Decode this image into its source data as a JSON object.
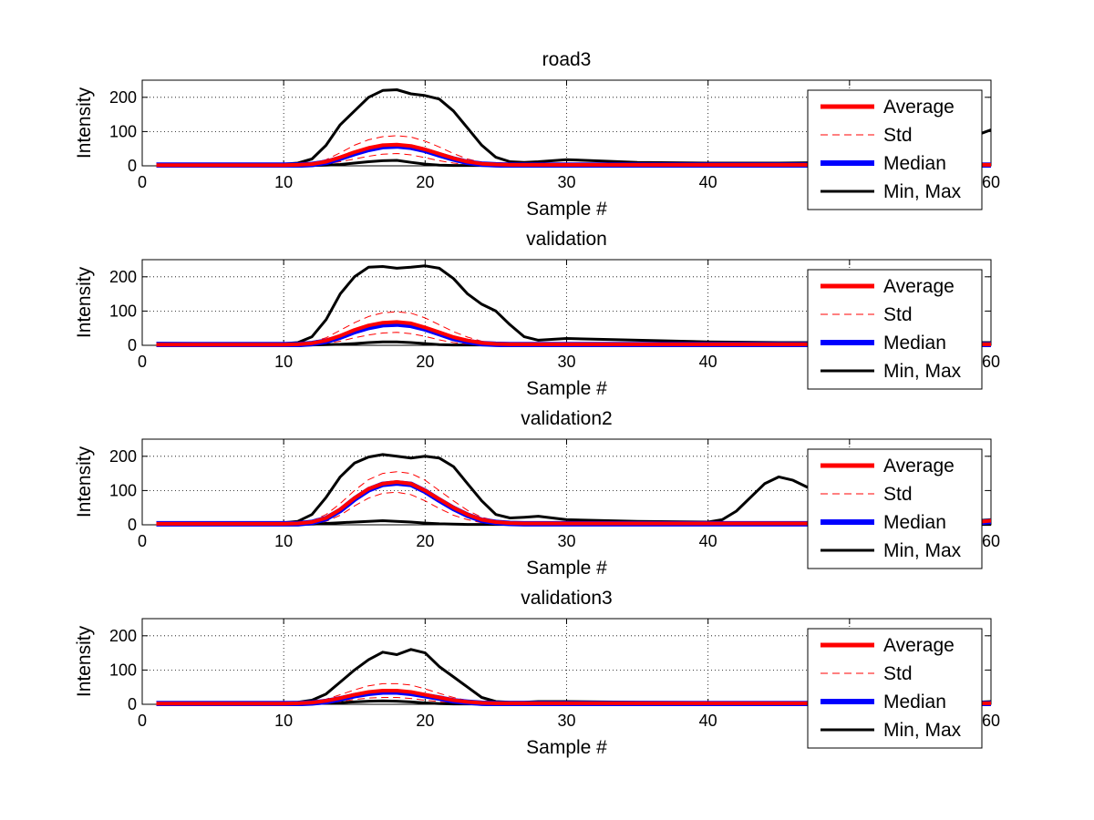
{
  "figure": {
    "x_ticks": [
      0,
      10,
      20,
      30,
      40,
      50,
      60
    ],
    "x_tick_labels": [
      "0",
      "10",
      "20",
      "30",
      "40",
      "",
      "60"
    ],
    "y_ticks": [
      0,
      100,
      200
    ],
    "xlim": [
      0,
      60
    ],
    "ylim": [
      0,
      250
    ],
    "grid": "dotted",
    "legend": {
      "placement": "right-overlapping-axes",
      "entries": [
        "Average",
        "Std",
        "Median",
        "Min, Max"
      ]
    },
    "colors": {
      "average": "#ff0000",
      "std": "#ff0000",
      "median": "#0000ff",
      "minmax": "#000000"
    }
  },
  "chart_data": [
    {
      "type": "line",
      "title": "road3",
      "xlabel": "Sample #",
      "ylabel": "Intensity",
      "xlim": [
        0,
        60
      ],
      "ylim": [
        0,
        250
      ],
      "x": [
        1,
        5,
        10,
        11,
        12,
        13,
        14,
        15,
        16,
        17,
        18,
        19,
        20,
        21,
        22,
        23,
        24,
        25,
        26,
        27,
        28,
        30,
        35,
        40,
        45,
        50,
        55,
        59,
        60
      ],
      "series": [
        {
          "name": "Average",
          "values": [
            2,
            2,
            2,
            3,
            5,
            12,
            25,
            40,
            52,
            60,
            62,
            58,
            48,
            35,
            22,
            12,
            6,
            4,
            3,
            3,
            3,
            3,
            3,
            3,
            3,
            3,
            3,
            3,
            3
          ]
        },
        {
          "name": "Std",
          "role": "upper",
          "values": [
            3,
            3,
            4,
            5,
            8,
            18,
            38,
            60,
            76,
            85,
            88,
            84,
            72,
            55,
            36,
            20,
            10,
            6,
            5,
            5,
            5,
            5,
            5,
            5,
            5,
            5,
            5,
            5,
            5
          ]
        },
        {
          "name": "Std",
          "role": "lower",
          "values": [
            1,
            1,
            1,
            1,
            2,
            6,
            12,
            20,
            28,
            34,
            36,
            32,
            24,
            15,
            8,
            4,
            2,
            2,
            1,
            1,
            1,
            1,
            1,
            1,
            1,
            1,
            1,
            1,
            1
          ]
        },
        {
          "name": "Median",
          "values": [
            2,
            2,
            2,
            2,
            4,
            10,
            22,
            36,
            48,
            56,
            58,
            54,
            45,
            32,
            20,
            10,
            5,
            3,
            2,
            2,
            2,
            2,
            2,
            2,
            2,
            2,
            2,
            2,
            2
          ]
        },
        {
          "name": "Min, Max",
          "role": "max",
          "values": [
            5,
            5,
            5,
            8,
            20,
            60,
            120,
            160,
            200,
            220,
            222,
            210,
            205,
            195,
            160,
            110,
            60,
            25,
            12,
            10,
            12,
            18,
            10,
            8,
            8,
            10,
            12,
            90,
            105
          ]
        },
        {
          "name": "Min, Max",
          "role": "min",
          "values": [
            1,
            1,
            1,
            1,
            1,
            2,
            4,
            8,
            12,
            15,
            16,
            10,
            5,
            2,
            1,
            1,
            1,
            1,
            1,
            1,
            1,
            1,
            1,
            1,
            1,
            1,
            1,
            1,
            1
          ]
        }
      ]
    },
    {
      "type": "line",
      "title": "validation",
      "xlabel": "Sample #",
      "ylabel": "Intensity",
      "xlim": [
        0,
        60
      ],
      "ylim": [
        0,
        250
      ],
      "x": [
        1,
        5,
        10,
        11,
        12,
        13,
        14,
        15,
        16,
        17,
        18,
        19,
        20,
        21,
        22,
        23,
        24,
        25,
        26,
        27,
        28,
        30,
        35,
        40,
        45,
        50,
        55,
        59,
        60
      ],
      "series": [
        {
          "name": "Average",
          "values": [
            2,
            2,
            2,
            3,
            6,
            14,
            28,
            45,
            58,
            66,
            68,
            64,
            52,
            38,
            24,
            14,
            7,
            4,
            3,
            3,
            3,
            3,
            3,
            3,
            3,
            3,
            3,
            3,
            3
          ]
        },
        {
          "name": "Std",
          "role": "upper",
          "values": [
            3,
            3,
            4,
            5,
            10,
            22,
            44,
            66,
            84,
            95,
            98,
            94,
            80,
            60,
            40,
            24,
            12,
            7,
            5,
            5,
            5,
            5,
            5,
            5,
            5,
            5,
            5,
            5,
            5
          ]
        },
        {
          "name": "Std",
          "role": "lower",
          "values": [
            1,
            1,
            1,
            1,
            2,
            6,
            12,
            22,
            30,
            36,
            38,
            34,
            26,
            16,
            8,
            4,
            2,
            1,
            1,
            1,
            1,
            1,
            1,
            1,
            1,
            1,
            1,
            1,
            1
          ]
        },
        {
          "name": "Median",
          "values": [
            2,
            2,
            2,
            2,
            5,
            12,
            24,
            40,
            52,
            60,
            62,
            58,
            48,
            34,
            20,
            11,
            5,
            3,
            2,
            2,
            2,
            2,
            2,
            2,
            2,
            2,
            2,
            2,
            2
          ]
        },
        {
          "name": "Min, Max",
          "role": "max",
          "values": [
            6,
            5,
            5,
            8,
            25,
            75,
            150,
            200,
            228,
            230,
            225,
            228,
            232,
            225,
            195,
            150,
            120,
            100,
            60,
            25,
            15,
            20,
            15,
            10,
            8,
            8,
            8,
            8,
            8
          ]
        },
        {
          "name": "Min, Max",
          "role": "min",
          "values": [
            1,
            1,
            1,
            1,
            1,
            2,
            3,
            5,
            8,
            10,
            10,
            8,
            5,
            2,
            1,
            1,
            1,
            1,
            1,
            1,
            1,
            1,
            1,
            1,
            1,
            1,
            1,
            1,
            1
          ]
        }
      ]
    },
    {
      "type": "line",
      "title": "validation2",
      "xlabel": "Sample #",
      "ylabel": "Intensity",
      "xlim": [
        0,
        60
      ],
      "ylim": [
        0,
        250
      ],
      "x": [
        1,
        5,
        10,
        11,
        12,
        13,
        14,
        15,
        16,
        17,
        18,
        19,
        20,
        21,
        22,
        23,
        24,
        25,
        26,
        27,
        28,
        30,
        35,
        40,
        41,
        42,
        43,
        44,
        45,
        46,
        47,
        48,
        50,
        55,
        59,
        60
      ],
      "series": [
        {
          "name": "Average",
          "values": [
            3,
            3,
            3,
            4,
            8,
            20,
            45,
            78,
            105,
            120,
            125,
            120,
            100,
            75,
            50,
            30,
            15,
            8,
            5,
            4,
            4,
            4,
            4,
            4,
            4,
            4,
            4,
            4,
            4,
            4,
            4,
            4,
            4,
            4,
            8,
            12
          ]
        },
        {
          "name": "Std",
          "role": "upper",
          "values": [
            4,
            4,
            4,
            6,
            12,
            30,
            62,
            100,
            132,
            150,
            155,
            150,
            130,
            100,
            70,
            42,
            22,
            12,
            8,
            6,
            6,
            6,
            6,
            6,
            6,
            6,
            6,
            6,
            6,
            6,
            6,
            6,
            6,
            6,
            10,
            14
          ]
        },
        {
          "name": "Std",
          "role": "lower",
          "values": [
            1,
            1,
            1,
            2,
            4,
            10,
            28,
            55,
            78,
            92,
            95,
            88,
            70,
            48,
            28,
            15,
            6,
            3,
            2,
            2,
            2,
            2,
            2,
            2,
            2,
            2,
            2,
            2,
            2,
            2,
            2,
            2,
            2,
            2,
            4,
            8
          ]
        },
        {
          "name": "Median",
          "values": [
            3,
            3,
            3,
            3,
            7,
            18,
            42,
            75,
            102,
            118,
            122,
            118,
            98,
            72,
            48,
            28,
            13,
            7,
            4,
            3,
            3,
            3,
            3,
            3,
            3,
            3,
            3,
            3,
            3,
            3,
            3,
            3,
            3,
            3,
            6,
            10
          ]
        },
        {
          "name": "Min, Max",
          "role": "max",
          "values": [
            6,
            5,
            6,
            10,
            30,
            80,
            140,
            180,
            198,
            205,
            200,
            195,
            200,
            195,
            170,
            120,
            70,
            30,
            20,
            22,
            25,
            15,
            10,
            8,
            15,
            40,
            80,
            120,
            140,
            130,
            110,
            95,
            70,
            20,
            12,
            15
          ]
        },
        {
          "name": "Min, Max",
          "role": "min",
          "values": [
            1,
            1,
            1,
            1,
            2,
            4,
            6,
            8,
            10,
            12,
            10,
            8,
            5,
            3,
            2,
            1,
            1,
            1,
            1,
            1,
            1,
            1,
            1,
            1,
            1,
            1,
            1,
            1,
            1,
            1,
            1,
            1,
            1,
            1,
            1,
            1
          ]
        }
      ]
    },
    {
      "type": "line",
      "title": "validation3",
      "xlabel": "Sample #",
      "ylabel": "Intensity",
      "xlim": [
        0,
        60
      ],
      "ylim": [
        0,
        250
      ],
      "x": [
        1,
        5,
        10,
        11,
        12,
        13,
        14,
        15,
        16,
        17,
        18,
        19,
        20,
        21,
        22,
        23,
        24,
        25,
        26,
        27,
        28,
        30,
        35,
        40,
        45,
        50,
        55,
        59,
        60
      ],
      "series": [
        {
          "name": "Average",
          "values": [
            2,
            2,
            2,
            3,
            5,
            10,
            18,
            28,
            36,
            40,
            40,
            36,
            28,
            20,
            12,
            7,
            4,
            3,
            3,
            3,
            3,
            3,
            3,
            3,
            3,
            3,
            3,
            3,
            3
          ]
        },
        {
          "name": "Std",
          "role": "upper",
          "values": [
            3,
            3,
            4,
            5,
            8,
            15,
            28,
            42,
            54,
            60,
            60,
            56,
            45,
            32,
            20,
            11,
            6,
            4,
            4,
            4,
            4,
            4,
            4,
            4,
            4,
            4,
            4,
            4,
            4
          ]
        },
        {
          "name": "Std",
          "role": "lower",
          "values": [
            1,
            1,
            1,
            1,
            2,
            4,
            8,
            14,
            18,
            20,
            20,
            17,
            12,
            8,
            5,
            3,
            2,
            1,
            1,
            1,
            1,
            1,
            1,
            1,
            1,
            1,
            1,
            1,
            1
          ]
        },
        {
          "name": "Median",
          "values": [
            2,
            2,
            2,
            2,
            4,
            8,
            16,
            25,
            32,
            36,
            36,
            32,
            25,
            18,
            10,
            6,
            3,
            2,
            2,
            2,
            2,
            2,
            2,
            2,
            2,
            2,
            2,
            2,
            2
          ]
        },
        {
          "name": "Min, Max",
          "role": "max",
          "values": [
            5,
            5,
            5,
            6,
            12,
            30,
            65,
            100,
            130,
            152,
            145,
            160,
            150,
            110,
            80,
            50,
            20,
            8,
            6,
            6,
            8,
            8,
            6,
            5,
            5,
            5,
            5,
            6,
            8
          ]
        },
        {
          "name": "Min, Max",
          "role": "min",
          "values": [
            1,
            1,
            1,
            1,
            2,
            3,
            5,
            7,
            9,
            10,
            9,
            7,
            4,
            2,
            1,
            1,
            1,
            1,
            1,
            1,
            1,
            1,
            1,
            1,
            1,
            1,
            1,
            1,
            1
          ]
        }
      ]
    }
  ]
}
